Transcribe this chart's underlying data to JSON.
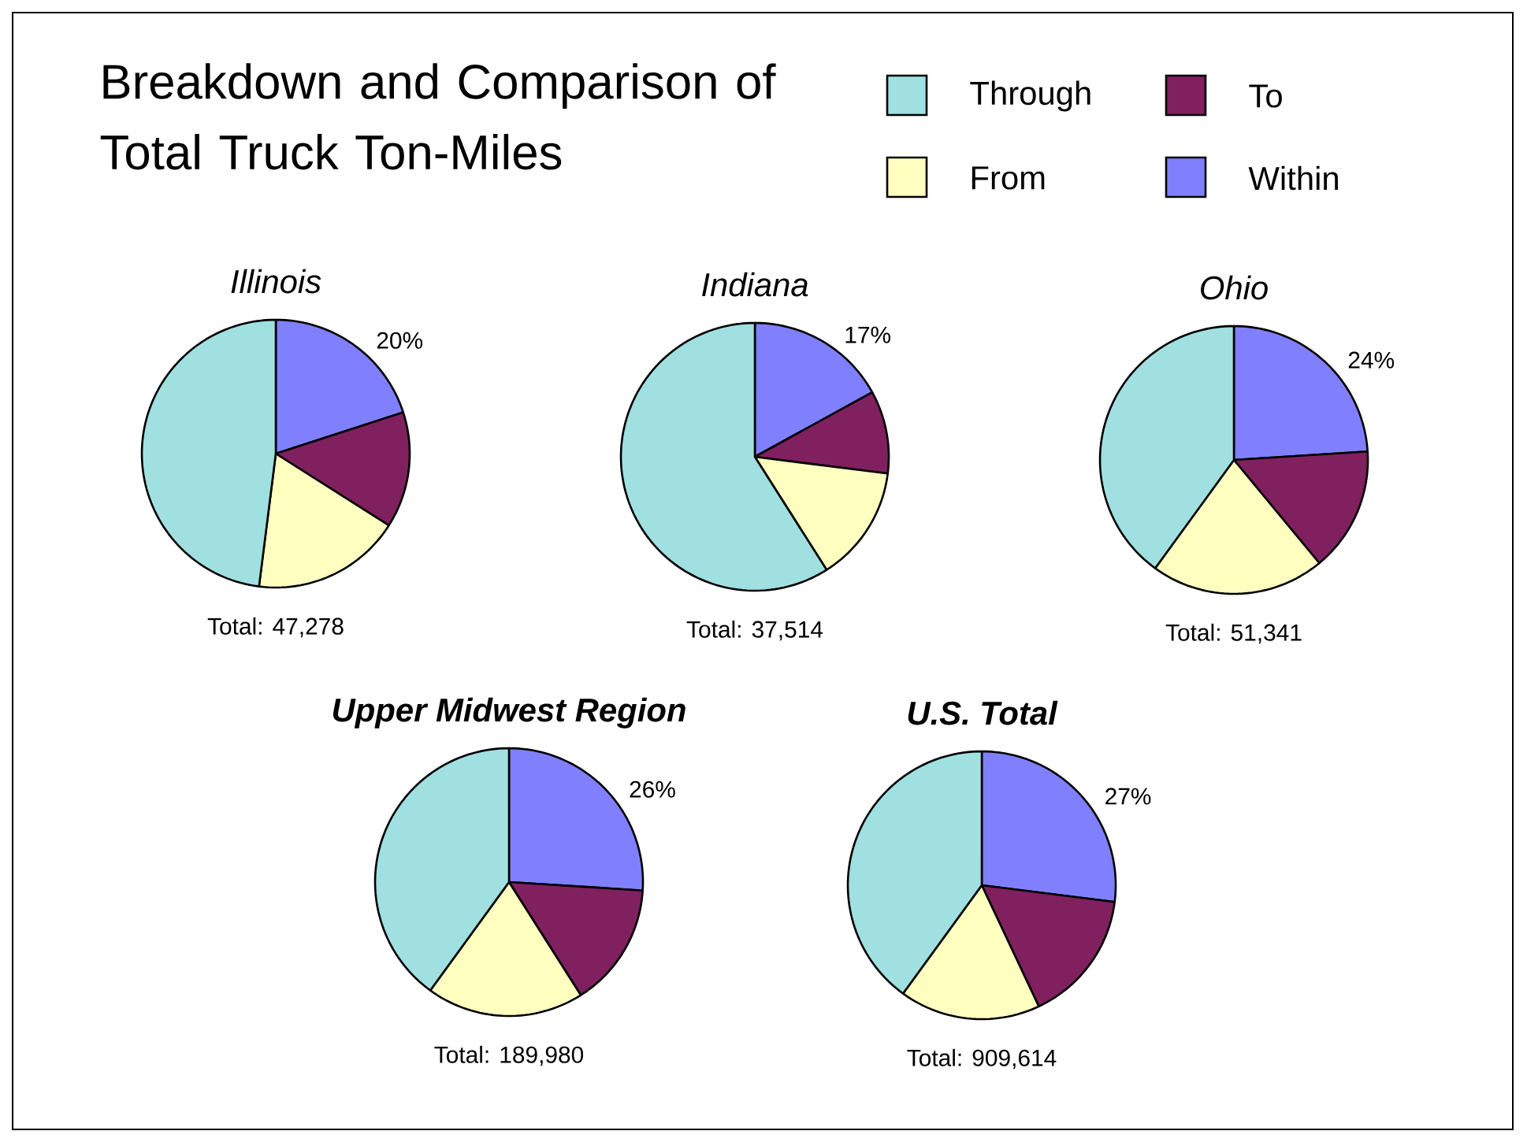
{
  "chart_data": [
    {
      "type": "pie",
      "title": "Breakdown and Comparison of Total Truck Ton-Miles",
      "subtitle": "Illinois",
      "categories": [
        "Within",
        "To",
        "From",
        "Through"
      ],
      "values": [
        20,
        14,
        18,
        48
      ],
      "colors": [
        "#8080ff",
        "#80205f",
        "#ffffc0",
        "#a0e0e0"
      ],
      "value_labels": [
        "20%",
        null,
        null,
        null
      ],
      "annotations": [
        "Total: 47,278"
      ],
      "legend": "top right"
    },
    {
      "type": "pie",
      "subtitle": "Indiana",
      "values": [
        17,
        10,
        14,
        59
      ],
      "colors": [
        "#8080ff",
        "#80205f",
        "#ffffc0",
        "#a0e0e0"
      ],
      "value_labels": [
        "17%",
        null,
        null,
        null
      ],
      "annotations": [
        "Total: 37,514"
      ]
    },
    {
      "type": "pie",
      "subtitle": "Ohio",
      "values": [
        24,
        15,
        21,
        40
      ],
      "colors": [
        "#8080ff",
        "#80205f",
        "#ffffc0",
        "#a0e0e0"
      ],
      "value_labels": [
        "24%",
        null,
        null,
        null
      ],
      "annotations": [
        "Total: 51,341"
      ]
    },
    {
      "type": "pie",
      "subtitle": "Upper Midwest Region",
      "values": [
        26,
        15,
        19,
        40
      ],
      "colors": [
        "#8080ff",
        "#80205f",
        "#ffffc0",
        "#a0e0e0"
      ],
      "value_labels": [
        "26%",
        null,
        null,
        null
      ],
      "annotations": [
        "Total: 189,980"
      ]
    },
    {
      "type": "pie",
      "subtitle": "U.S. Total",
      "values": [
        27,
        16,
        17,
        40
      ],
      "colors": [
        "#8080ff",
        "#80205f",
        "#ffffc0",
        "#a0e0e0"
      ],
      "value_labels": [
        "27%",
        null,
        null,
        null
      ],
      "annotations": [
        "Total: 909,614"
      ]
    }
  ]
}
